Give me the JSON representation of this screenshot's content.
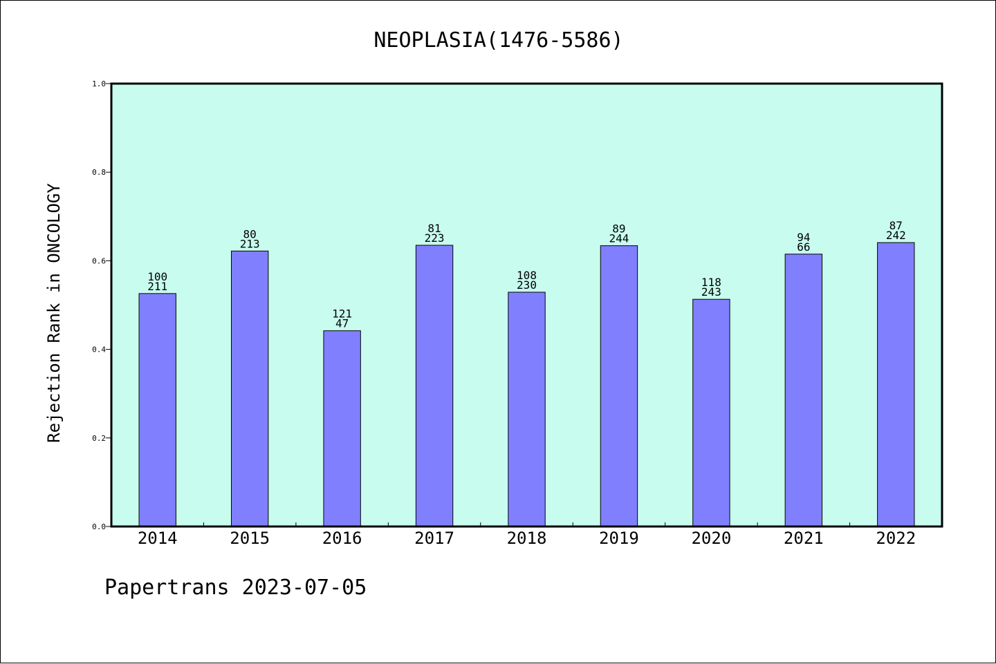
{
  "chart_data": {
    "type": "bar",
    "title": "NEOPLASIA(1476-5586)",
    "xlabel": "",
    "ylabel": "Rejection Rank in ONCOLOGY",
    "ylim": [
      0,
      1.0
    ],
    "yticks": [
      "0.0",
      "0.2",
      "0.4",
      "0.6",
      "0.8",
      "1.0"
    ],
    "grid": false,
    "categories": [
      "2014",
      "2015",
      "2016",
      "2017",
      "2018",
      "2019",
      "2020",
      "2021",
      "2022"
    ],
    "values": [
      0.526,
      0.622,
      0.442,
      0.635,
      0.529,
      0.634,
      0.513,
      0.615,
      0.641
    ],
    "label_top": [
      "100",
      "80",
      "121",
      "81",
      "108",
      "89",
      "118",
      "94",
      "87"
    ],
    "label_bottom": [
      "211",
      "213",
      "47",
      "223",
      "230",
      "244",
      "243",
      "66",
      "242"
    ]
  },
  "colors": {
    "plot_background": "#c8fcee",
    "bar_fill": "#8080ff",
    "bar_stroke": "#000000",
    "axis": "#000000"
  },
  "footer": "Papertrans 2023-07-05"
}
